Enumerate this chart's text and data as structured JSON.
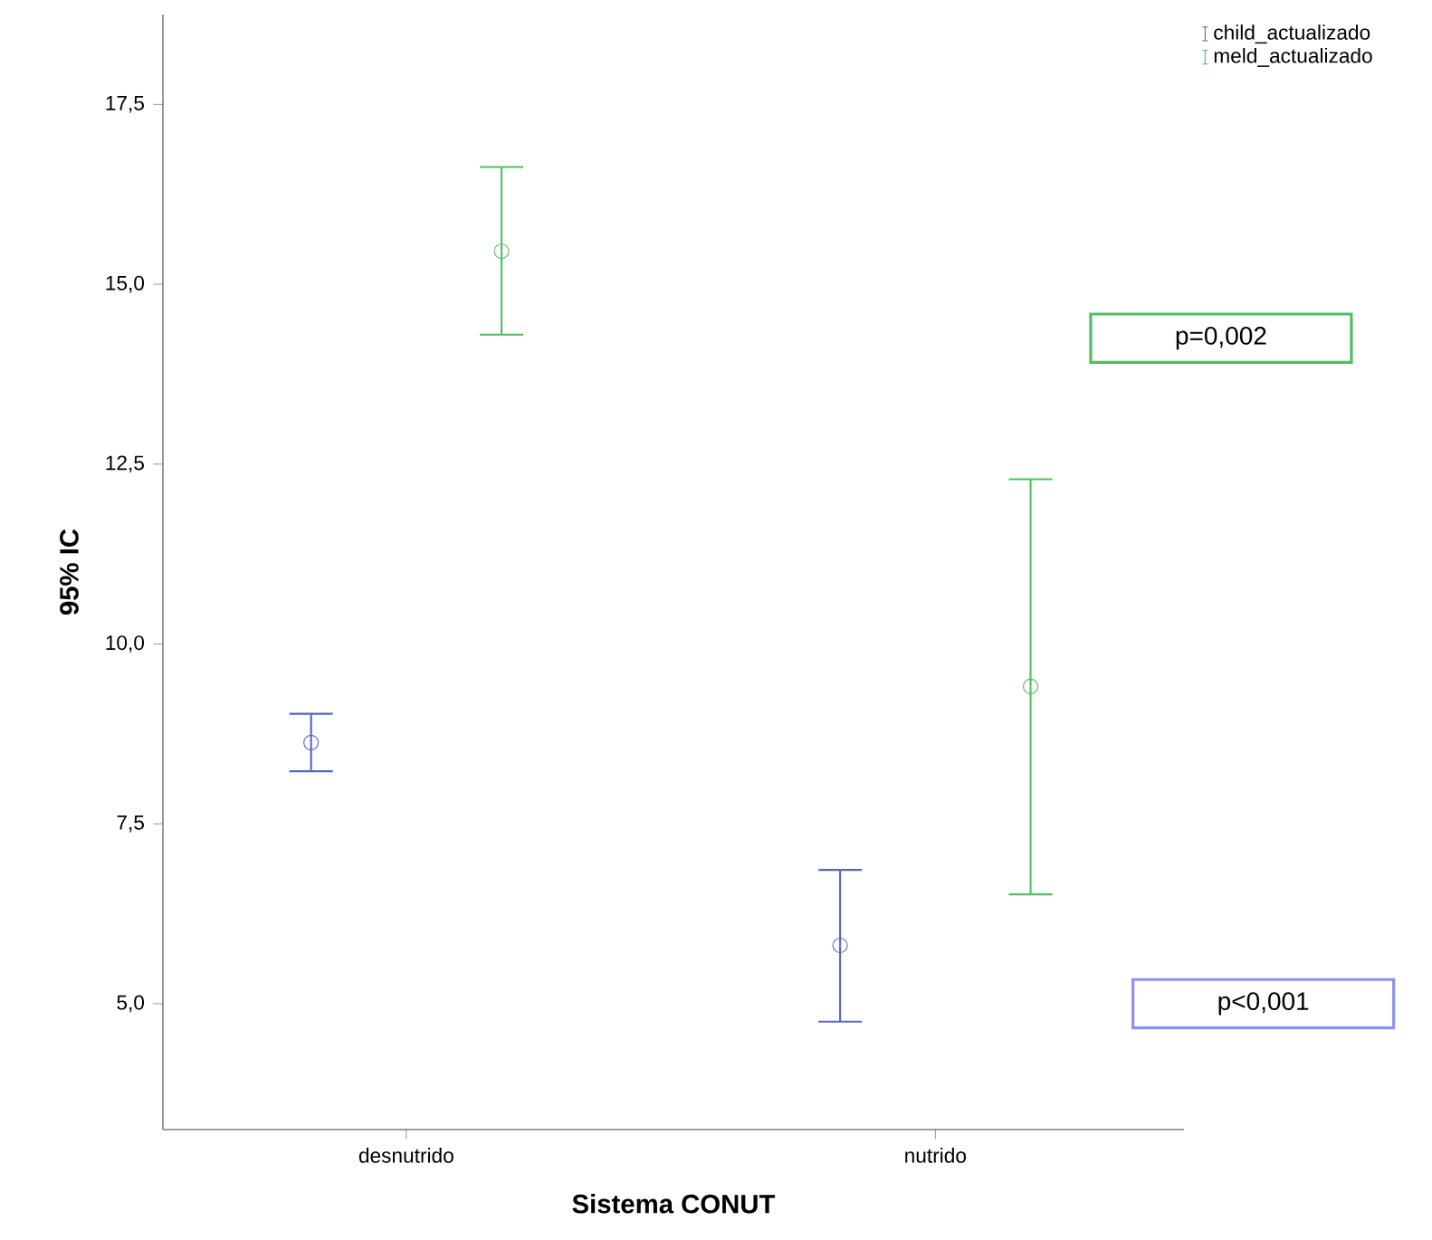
{
  "chart_data": {
    "type": "scatter",
    "xlabel": "Sistema CONUT",
    "ylabel": "95% IC",
    "categories": [
      "desnutrido",
      "nutrido"
    ],
    "series": [
      {
        "name": "child_actualizado",
        "color": "#5766b8",
        "values": [
          8.63,
          5.81
        ],
        "errors": [
          [
            8.23,
            9.03
          ],
          [
            4.75,
            6.86
          ]
        ]
      },
      {
        "name": "meld_actualizado",
        "color": "#4fbf63",
        "values": [
          15.46,
          9.41
        ],
        "errors": [
          [
            14.3,
            16.63
          ],
          [
            6.52,
            12.29
          ]
        ]
      }
    ],
    "ylim": [
      3.25,
      18.75
    ],
    "yticks": [
      {
        "value": 5,
        "label": "5,0"
      },
      {
        "value": 7.5,
        "label": "7,5"
      },
      {
        "value": 10,
        "label": "10,0"
      },
      {
        "value": 12.5,
        "label": "12,5"
      },
      {
        "value": 15,
        "label": "15,0"
      },
      {
        "value": 17.5,
        "label": "17,5"
      }
    ],
    "annotations": [
      "p=0,002",
      "p<0,001"
    ],
    "marker": "circle",
    "legend": "top right",
    "grid": false
  }
}
